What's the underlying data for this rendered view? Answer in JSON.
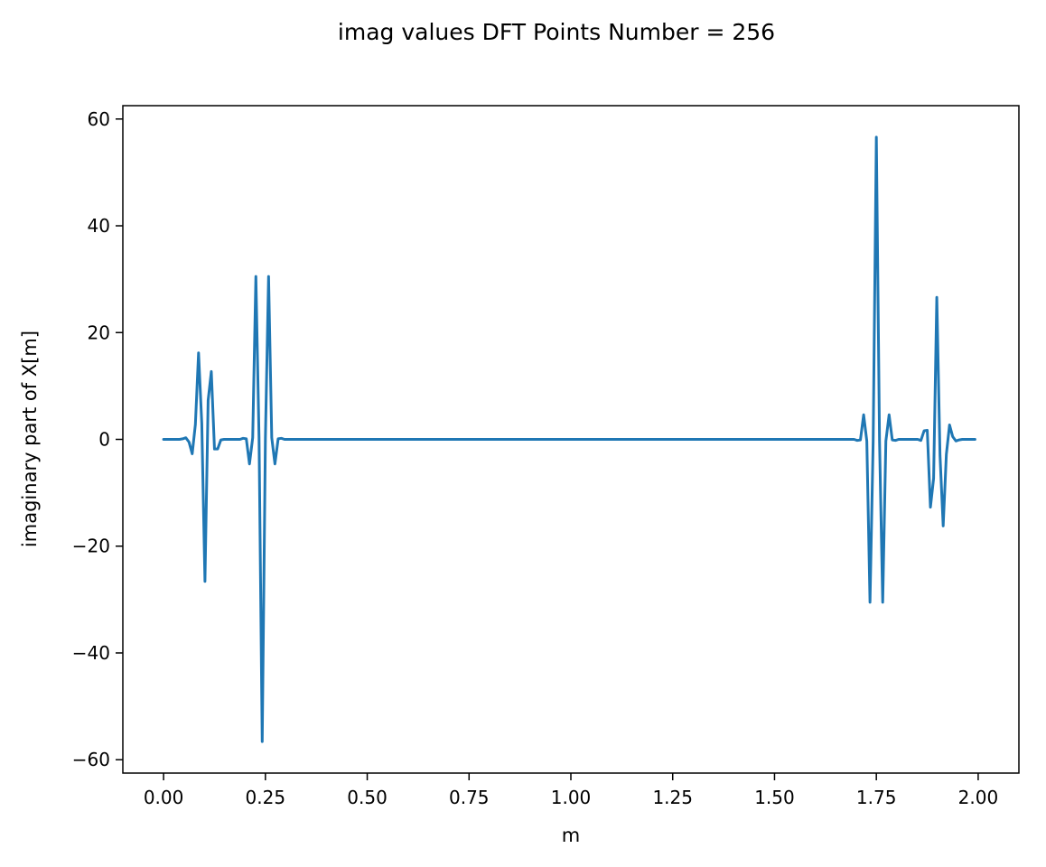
{
  "chart_data": {
    "type": "line",
    "title": "imag values DFT Points Number = 256",
    "xlabel": "m",
    "ylabel": "imaginary part of X[m]",
    "xlim": [
      -0.1,
      2.1
    ],
    "ylim": [
      -62.5,
      62.5
    ],
    "xticks": [
      0.0,
      0.25,
      0.5,
      0.75,
      1.0,
      1.25,
      1.5,
      1.75,
      2.0
    ],
    "xtick_labels": [
      "0.00",
      "0.25",
      "0.50",
      "0.75",
      "1.00",
      "1.25",
      "1.50",
      "1.75",
      "2.00"
    ],
    "yticks": [
      -60,
      -40,
      -20,
      0,
      20,
      40,
      60
    ],
    "ytick_labels": [
      "−60",
      "−40",
      "−20",
      "0",
      "20",
      "40",
      "60"
    ],
    "grid": false,
    "colors": {
      "line": "#1f77b4",
      "axes": "#000000",
      "background": "#ffffff"
    },
    "series": [
      {
        "x": [
          0.0,
          0.0078,
          0.0156,
          0.0234,
          0.0313,
          0.0391,
          0.0469,
          0.0547,
          0.0625,
          0.0703,
          0.0781,
          0.0859,
          0.0938,
          0.1016,
          0.1094,
          0.1172,
          0.125,
          0.1328,
          0.1406,
          0.1484,
          0.1563,
          0.1641,
          0.1719,
          0.1797,
          0.1875,
          0.1953,
          0.2031,
          0.2109,
          0.2188,
          0.2266,
          0.2344,
          0.2422,
          0.25,
          0.2578,
          0.2656,
          0.2734,
          0.2813,
          0.2891,
          0.2969,
          0.3047,
          0.3125,
          0.3203,
          0.3281,
          0.3359,
          0.3438,
          0.5,
          0.75,
          1.0,
          1.25,
          1.5,
          1.6563,
          1.6641,
          1.6719,
          1.6797,
          1.6875,
          1.6953,
          1.7031,
          1.7109,
          1.7188,
          1.7266,
          1.7344,
          1.7422,
          1.75,
          1.7578,
          1.7656,
          1.7734,
          1.7813,
          1.7891,
          1.7969,
          1.8047,
          1.8125,
          1.8203,
          1.8281,
          1.8359,
          1.8438,
          1.8516,
          1.8594,
          1.8672,
          1.875,
          1.8828,
          1.8906,
          1.8984,
          1.9063,
          1.9141,
          1.9219,
          1.9297,
          1.9375,
          1.9453,
          1.9531,
          1.9609,
          1.9688,
          1.9766,
          1.9844,
          1.9922
        ],
        "y": [
          0,
          0,
          0,
          0,
          0,
          0,
          0.1,
          0.3,
          -0.5,
          -2.7,
          2.8,
          16.2,
          3.0,
          -26.6,
          7.3,
          12.7,
          -1.8,
          -1.8,
          -0.1,
          0,
          0,
          0,
          0,
          0,
          0,
          0.2,
          0.1,
          -4.6,
          0.3,
          30.5,
          0.3,
          -56.6,
          0.3,
          30.5,
          0.3,
          -4.6,
          0.1,
          0.2,
          0,
          0,
          0,
          0,
          0,
          0,
          0,
          0,
          0,
          0,
          0,
          0,
          0,
          0,
          0,
          0,
          0,
          0,
          -0.2,
          -0.1,
          4.6,
          -0.3,
          -30.5,
          -0.3,
          56.6,
          -0.3,
          -30.5,
          -0.3,
          4.6,
          -0.1,
          -0.2,
          0,
          0,
          0,
          0,
          0,
          0,
          0,
          -0.2,
          1.6,
          1.7,
          -12.7,
          -7.3,
          26.6,
          -3.0,
          -16.2,
          -2.8,
          2.7,
          0.5,
          -0.3,
          -0.1,
          0,
          0,
          0,
          0,
          0
        ]
      }
    ]
  }
}
